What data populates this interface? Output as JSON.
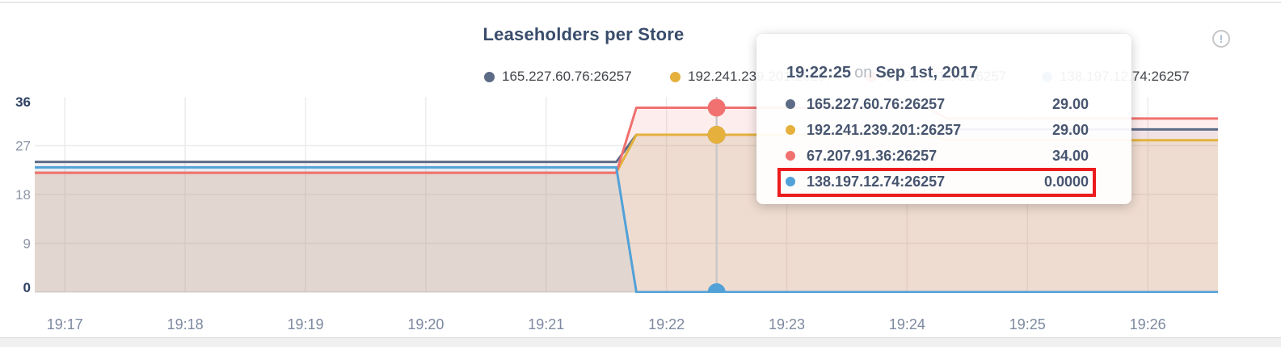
{
  "panel": {
    "title": "Leaseholders per Store"
  },
  "icons": {
    "info": "!"
  },
  "colors": {
    "series": {
      "slate": "#5E6B87",
      "yellow": "#E5B13C",
      "red": "#F0716F",
      "blue": "#52A1D8"
    },
    "grid": "#ECECEC",
    "axis_zero_line": "#E2E2E2",
    "hover_line": "#C9C9C9",
    "axis_strong": "#2E4164",
    "axis_muted": "#8D96A8",
    "x_label": "#7D89A0",
    "highlight": "#EC1B1E"
  },
  "legend": {
    "items": [
      {
        "label": "165.227.60.76:26257",
        "series": "slate"
      },
      {
        "label": "192.241.239.201:26257",
        "series": "yellow"
      },
      {
        "label": "67.207.91.36:26257",
        "series": "red"
      },
      {
        "label": "138.197.12.74:26257",
        "series": "blue"
      }
    ]
  },
  "tooltip": {
    "time": "19:22:25",
    "conjunction": "on",
    "date": "Sep 1st, 2017",
    "rows": [
      {
        "series": "slate",
        "label": "165.227.60.76:26257",
        "value": "29.00",
        "highlighted": false
      },
      {
        "series": "yellow",
        "label": "192.241.239.201:26257",
        "value": "29.00",
        "highlighted": false
      },
      {
        "series": "red",
        "label": "67.207.91.36:26257",
        "value": "34.00",
        "highlighted": false
      },
      {
        "series": "blue",
        "label": "138.197.12.74:26257",
        "value": "0.0000",
        "highlighted": true
      }
    ]
  },
  "chart_data": {
    "type": "area",
    "title": "Leaseholders per Store",
    "xlabel": "",
    "ylabel": "",
    "ylim": [
      0,
      36
    ],
    "y_ticks": [
      0,
      9,
      18,
      27,
      36
    ],
    "x_ticks": [
      "19:17",
      "19:18",
      "19:19",
      "19:20",
      "19:21",
      "19:22",
      "19:23",
      "19:24",
      "19:25",
      "19:26"
    ],
    "x_range": {
      "start": "19:16:45",
      "end": "19:26:35"
    },
    "grid": true,
    "legend_position": "top",
    "series": [
      {
        "name": "165.227.60.76:26257",
        "color_key": "slate",
        "points": [
          [
            "19:16:45",
            24
          ],
          [
            "19:21:35",
            24
          ],
          [
            "19:21:45",
            29
          ],
          [
            "19:24:10",
            29
          ],
          [
            "19:24:20",
            30
          ],
          [
            "19:26:35",
            30
          ]
        ]
      },
      {
        "name": "192.241.239.201:26257",
        "color_key": "yellow",
        "points": [
          [
            "19:16:45",
            22
          ],
          [
            "19:21:35",
            22
          ],
          [
            "19:21:45",
            29
          ],
          [
            "19:24:10",
            29
          ],
          [
            "19:24:20",
            28
          ],
          [
            "19:26:35",
            28
          ]
        ]
      },
      {
        "name": "67.207.91.36:26257",
        "color_key": "red",
        "points": [
          [
            "19:16:45",
            22
          ],
          [
            "19:21:35",
            22
          ],
          [
            "19:21:45",
            34
          ],
          [
            "19:24:10",
            34
          ],
          [
            "19:24:20",
            32
          ],
          [
            "19:26:35",
            32
          ]
        ]
      },
      {
        "name": "138.197.12.74:26257",
        "color_key": "blue",
        "points": [
          [
            "19:16:45",
            23
          ],
          [
            "19:21:35",
            23
          ],
          [
            "19:21:45",
            0
          ],
          [
            "19:26:35",
            0
          ]
        ]
      }
    ],
    "hover": {
      "time": "19:22:25",
      "points": [
        {
          "series": "slate",
          "value": 29
        },
        {
          "series": "yellow",
          "value": 29
        },
        {
          "series": "red",
          "value": 34
        },
        {
          "series": "blue",
          "value": 0
        }
      ]
    }
  }
}
